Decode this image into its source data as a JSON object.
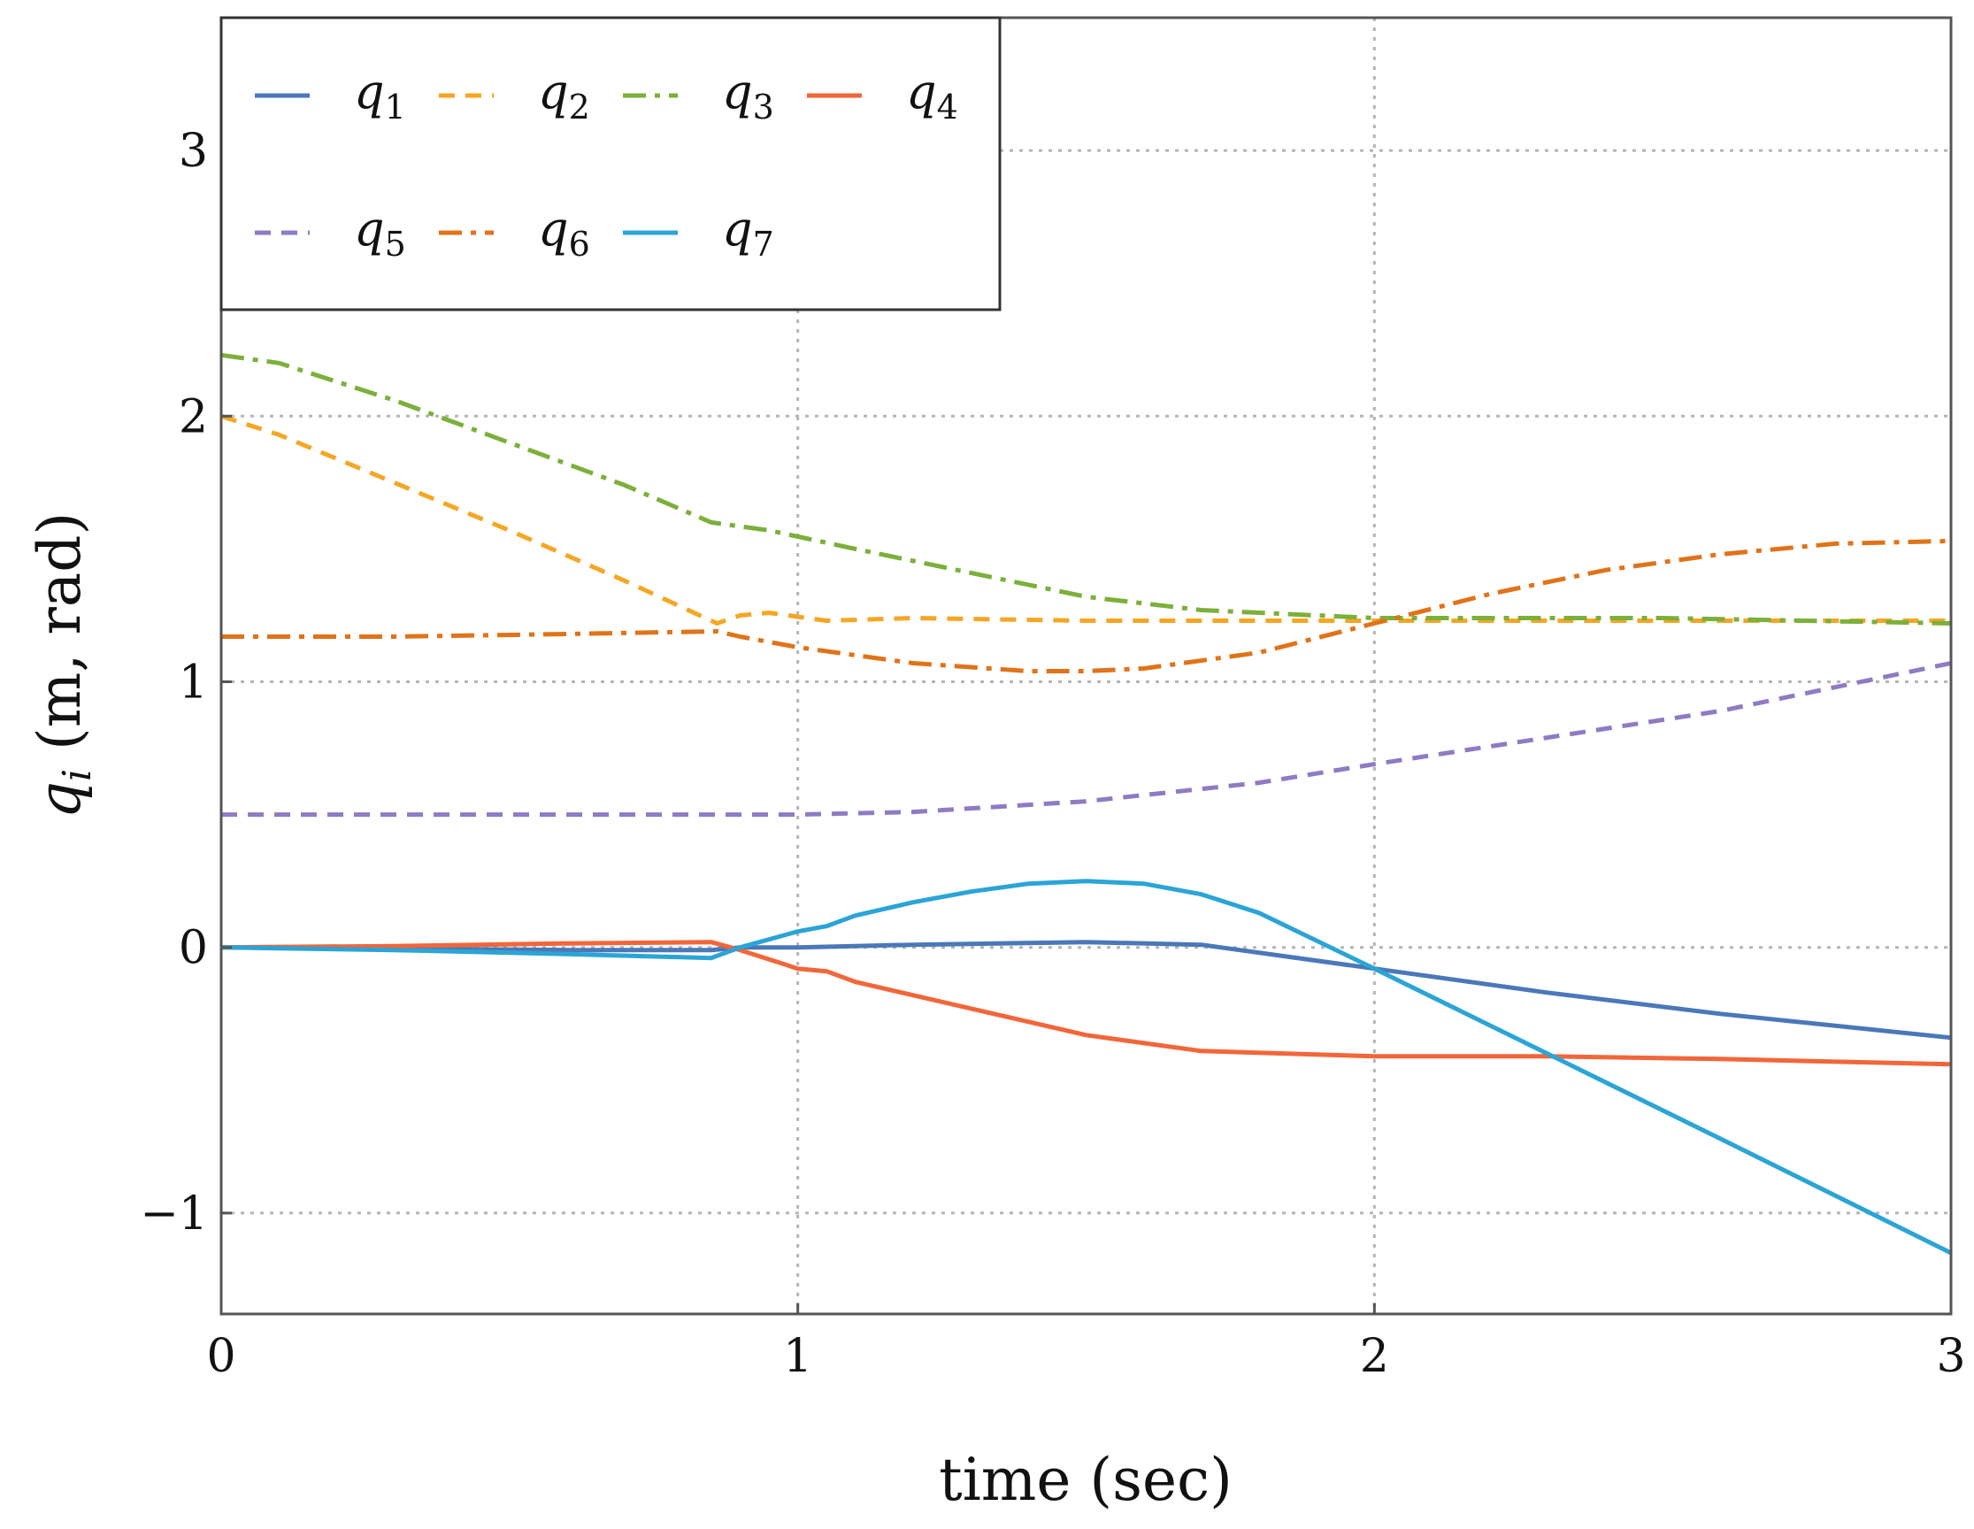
{
  "chart_data": {
    "type": "line",
    "title": "",
    "xlabel": "time (sec)",
    "ylabel_main": "q",
    "ylabel_sub": "i",
    "ylabel_rest": " (m, rad)",
    "xlim": [
      0,
      3
    ],
    "ylim": [
      -1.38,
      3.5
    ],
    "xticks": [
      0,
      1,
      2,
      3
    ],
    "xtick_labels": [
      "0",
      "1",
      "2",
      "3"
    ],
    "yticks": [
      -1,
      0,
      1,
      2,
      3
    ],
    "ytick_labels": [
      "−1",
      "0",
      "1",
      "2",
      "3"
    ],
    "grid": true,
    "legend_position": "top-left",
    "series": [
      {
        "name": "q",
        "sub": "1",
        "color": "#4A78B8",
        "dash": "solid",
        "x": [
          0,
          0.3,
          0.6,
          0.85,
          0.9,
          1.0,
          1.2,
          1.5,
          1.7,
          2.0,
          2.3,
          2.6,
          3.0
        ],
        "y": [
          0,
          -0.005,
          -0.01,
          -0.01,
          0,
          0,
          0.01,
          0.02,
          0.01,
          -0.08,
          -0.17,
          -0.25,
          -0.34
        ]
      },
      {
        "name": "q",
        "sub": "2",
        "color": "#F5A623",
        "dash": "dash",
        "x": [
          0,
          0.1,
          0.3,
          0.5,
          0.7,
          0.86,
          0.9,
          0.95,
          1.05,
          1.2,
          1.5,
          2.0,
          2.5,
          3.0
        ],
        "y": [
          2.0,
          1.93,
          1.75,
          1.57,
          1.38,
          1.22,
          1.25,
          1.26,
          1.23,
          1.24,
          1.23,
          1.23,
          1.23,
          1.23
        ]
      },
      {
        "name": "q",
        "sub": "3",
        "color": "#7BB03A",
        "dash": "dashdot",
        "x": [
          0,
          0.1,
          0.3,
          0.5,
          0.7,
          0.85,
          0.95,
          1.1,
          1.3,
          1.5,
          1.7,
          1.9,
          2.0,
          2.5,
          3.0
        ],
        "y": [
          2.23,
          2.2,
          2.06,
          1.9,
          1.74,
          1.6,
          1.57,
          1.5,
          1.41,
          1.32,
          1.27,
          1.25,
          1.24,
          1.24,
          1.22
        ]
      },
      {
        "name": "q",
        "sub": "4",
        "color": "#F2663A",
        "dash": "solid",
        "x": [
          0,
          0.3,
          0.6,
          0.85,
          0.9,
          1.0,
          1.05,
          1.1,
          1.3,
          1.5,
          1.7,
          2.0,
          2.3,
          2.6,
          3.0
        ],
        "y": [
          0,
          0.005,
          0.015,
          0.02,
          -0.01,
          -0.08,
          -0.09,
          -0.13,
          -0.23,
          -0.33,
          -0.39,
          -0.41,
          -0.41,
          -0.42,
          -0.44
        ]
      },
      {
        "name": "q",
        "sub": "5",
        "color": "#8F7BC3",
        "dash": "dash",
        "x": [
          0,
          0.3,
          0.6,
          0.9,
          1.0,
          1.2,
          1.5,
          1.8,
          2.0,
          2.3,
          2.6,
          3.0
        ],
        "y": [
          0.5,
          0.5,
          0.5,
          0.5,
          0.5,
          0.51,
          0.55,
          0.62,
          0.69,
          0.79,
          0.89,
          1.07
        ]
      },
      {
        "name": "q",
        "sub": "6",
        "color": "#E07319",
        "dash": "dashdot",
        "x": [
          0,
          0.3,
          0.6,
          0.86,
          0.9,
          1.0,
          1.2,
          1.4,
          1.5,
          1.6,
          1.8,
          2.0,
          2.2,
          2.4,
          2.6,
          2.8,
          3.0
        ],
        "y": [
          1.17,
          1.17,
          1.18,
          1.19,
          1.17,
          1.13,
          1.07,
          1.04,
          1.04,
          1.05,
          1.11,
          1.22,
          1.33,
          1.42,
          1.48,
          1.52,
          1.53
        ]
      },
      {
        "name": "q",
        "sub": "7",
        "color": "#2BA4D6",
        "dash": "solid",
        "x": [
          0,
          0.3,
          0.6,
          0.85,
          0.9,
          1.0,
          1.05,
          1.1,
          1.2,
          1.3,
          1.4,
          1.5,
          1.6,
          1.7,
          1.8,
          2.0,
          2.3,
          2.6,
          3.0
        ],
        "y": [
          0,
          -0.01,
          -0.025,
          -0.04,
          0.0,
          0.06,
          0.08,
          0.12,
          0.17,
          0.21,
          0.24,
          0.25,
          0.24,
          0.2,
          0.13,
          -0.08,
          -0.4,
          -0.72,
          -1.15
        ]
      }
    ]
  }
}
